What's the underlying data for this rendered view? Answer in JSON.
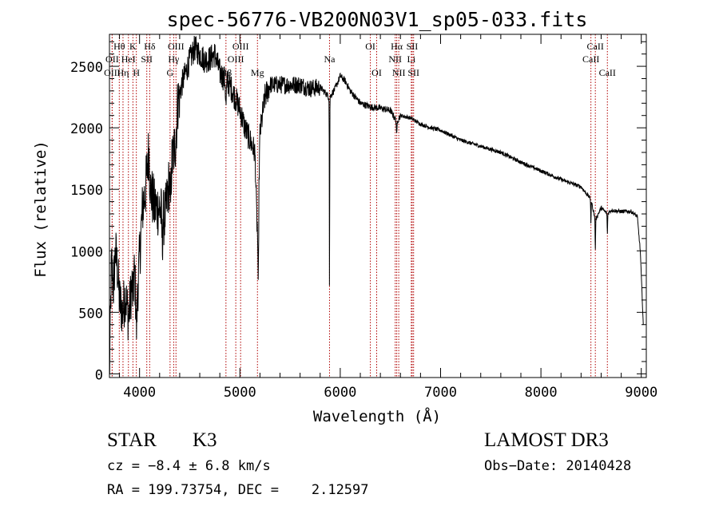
{
  "chart_data": {
    "type": "line",
    "title": "spec-56776-VB200N03V1_sp05-033.fits",
    "xlabel": "Wavelength (Å)",
    "ylabel": "Flux (relative)",
    "xlim": [
      3700,
      9050
    ],
    "ylim": [
      -30,
      2760
    ],
    "xticks": [
      4000,
      5000,
      6000,
      7000,
      8000,
      9000
    ],
    "yticks": [
      0,
      500,
      1000,
      1500,
      2000,
      2500
    ],
    "x_minor_step": 200,
    "y_minor_step": 100,
    "grid": false,
    "line_color": "#000000",
    "marker_color": "#b00000",
    "spectrum_anchors": [
      [
        3700,
        0
      ],
      [
        3720,
        900
      ],
      [
        3740,
        700
      ],
      [
        3760,
        1000
      ],
      [
        3780,
        850
      ],
      [
        3800,
        600
      ],
      [
        3830,
        500
      ],
      [
        3860,
        650
      ],
      [
        3890,
        450
      ],
      [
        3920,
        700
      ],
      [
        3950,
        820
      ],
      [
        3970,
        500
      ],
      [
        4000,
        950
      ],
      [
        4030,
        1350
      ],
      [
        4060,
        1500
      ],
      [
        4080,
        1700
      ],
      [
        4101,
        1900
      ],
      [
        4110,
        1500
      ],
      [
        4150,
        1350
      ],
      [
        4200,
        1350
      ],
      [
        4230,
        1250
      ],
      [
        4260,
        1300
      ],
      [
        4300,
        1600
      ],
      [
        4320,
        1700
      ],
      [
        4340,
        1800
      ],
      [
        4361,
        1900
      ],
      [
        4380,
        2200
      ],
      [
        4420,
        2350
      ],
      [
        4460,
        2450
      ],
      [
        4500,
        2550
      ],
      [
        4550,
        2650
      ],
      [
        4600,
        2600
      ],
      [
        4650,
        2550
      ],
      [
        4700,
        2560
      ],
      [
        4750,
        2600
      ],
      [
        4800,
        2450
      ],
      [
        4861,
        2380
      ],
      [
        4900,
        2350
      ],
      [
        4950,
        2250
      ],
      [
        5000,
        2150
      ],
      [
        5050,
        2000
      ],
      [
        5100,
        1900
      ],
      [
        5150,
        1800
      ],
      [
        5183,
        1350
      ],
      [
        5200,
        1950
      ],
      [
        5250,
        2250
      ],
      [
        5300,
        2350
      ],
      [
        5400,
        2350
      ],
      [
        5500,
        2350
      ],
      [
        5600,
        2350
      ],
      [
        5700,
        2320
      ],
      [
        5800,
        2330
      ],
      [
        5890,
        2250
      ],
      [
        5893,
        1400
      ],
      [
        5896,
        2250
      ],
      [
        5950,
        2320
      ],
      [
        6000,
        2420
      ],
      [
        6050,
        2380
      ],
      [
        6100,
        2300
      ],
      [
        6150,
        2250
      ],
      [
        6200,
        2200
      ],
      [
        6300,
        2170
      ],
      [
        6400,
        2160
      ],
      [
        6500,
        2140
      ],
      [
        6563,
        2050
      ],
      [
        6600,
        2100
      ],
      [
        6700,
        2080
      ],
      [
        6800,
        2030
      ],
      [
        6900,
        2000
      ],
      [
        7000,
        1980
      ],
      [
        7200,
        1900
      ],
      [
        7400,
        1850
      ],
      [
        7600,
        1800
      ],
      [
        7800,
        1720
      ],
      [
        8000,
        1650
      ],
      [
        8200,
        1580
      ],
      [
        8400,
        1520
      ],
      [
        8498,
        1420
      ],
      [
        8542,
        1250
      ],
      [
        8600,
        1350
      ],
      [
        8662,
        1300
      ],
      [
        8700,
        1330
      ],
      [
        8800,
        1320
      ],
      [
        8900,
        1320
      ],
      [
        8960,
        1280
      ],
      [
        8990,
        1000
      ],
      [
        9010,
        600
      ],
      [
        9020,
        400
      ]
    ],
    "absorption_features": [
      {
        "x": 3934,
        "depth": 150,
        "width": 6
      },
      {
        "x": 3968,
        "depth": 150,
        "width": 6
      },
      {
        "x": 4101,
        "depth": 250,
        "width": 5
      },
      {
        "x": 4226,
        "depth": 200,
        "width": 5
      },
      {
        "x": 4308,
        "depth": 300,
        "width": 6
      },
      {
        "x": 4861,
        "depth": 200,
        "width": 6
      },
      {
        "x": 5170,
        "depth": 300,
        "width": 12
      },
      {
        "x": 5183,
        "depth": 600,
        "width": 5
      },
      {
        "x": 5893,
        "depth": 850,
        "width": 3
      },
      {
        "x": 6563,
        "depth": 120,
        "width": 4
      },
      {
        "x": 8498,
        "depth": 200,
        "width": 3
      },
      {
        "x": 8542,
        "depth": 260,
        "width": 3
      },
      {
        "x": 8662,
        "depth": 170,
        "width": 3
      }
    ],
    "line_markers": [
      {
        "label": "Hθ",
        "x": 3798,
        "row": 1
      },
      {
        "label": "OII",
        "x": 3727,
        "row": 2
      },
      {
        "label": "OIII",
        "x": 3727,
        "row": 3
      },
      {
        "label": "Hη",
        "x": 3835,
        "row": 3
      },
      {
        "label": "K",
        "x": 3934,
        "row": 1
      },
      {
        "label": "HeI",
        "x": 3889,
        "row": 2
      },
      {
        "label": "H",
        "x": 3968,
        "row": 3
      },
      {
        "label": "Hδ",
        "x": 4101,
        "row": 1
      },
      {
        "label": "SII",
        "x": 4072,
        "row": 2
      },
      {
        "label": "OIII",
        "x": 4363,
        "row": 1
      },
      {
        "label": "Hγ",
        "x": 4340,
        "row": 2
      },
      {
        "label": "G",
        "x": 4304,
        "row": 3
      },
      {
        "label": "OIII",
        "x": 5007,
        "row": 1
      },
      {
        "label": "OIII",
        "x": 4959,
        "row": 2
      },
      {
        "label": "Hβ",
        "x": 4861,
        "row": 3
      },
      {
        "label": "Mg",
        "x": 5175,
        "row": 3
      },
      {
        "label": "Na",
        "x": 5893,
        "row": 2
      },
      {
        "label": "OI",
        "x": 6300,
        "row": 1
      },
      {
        "label": "OI",
        "x": 6363,
        "row": 3
      },
      {
        "label": "Hα",
        "x": 6563,
        "row": 1
      },
      {
        "label": "SII",
        "x": 6717,
        "row": 1
      },
      {
        "label": "NII",
        "x": 6548,
        "row": 2
      },
      {
        "label": "Li",
        "x": 6708,
        "row": 2
      },
      {
        "label": "NII",
        "x": 6583,
        "row": 3
      },
      {
        "label": "SII",
        "x": 6731,
        "row": 3
      },
      {
        "label": "CaII",
        "x": 8542,
        "row": 1
      },
      {
        "label": "CaII",
        "x": 8498,
        "row": 2
      },
      {
        "label": "CaII",
        "x": 8662,
        "row": 3
      }
    ]
  },
  "info": {
    "object_class": "STAR",
    "subclass": "K3",
    "survey": "LAMOST DR3",
    "redshift": "cz = −8.4 ± 6.8 km/s",
    "obs_date": "Obs−Date: 20140428",
    "coords": "RA = 199.73754, DEC =    2.12597"
  }
}
